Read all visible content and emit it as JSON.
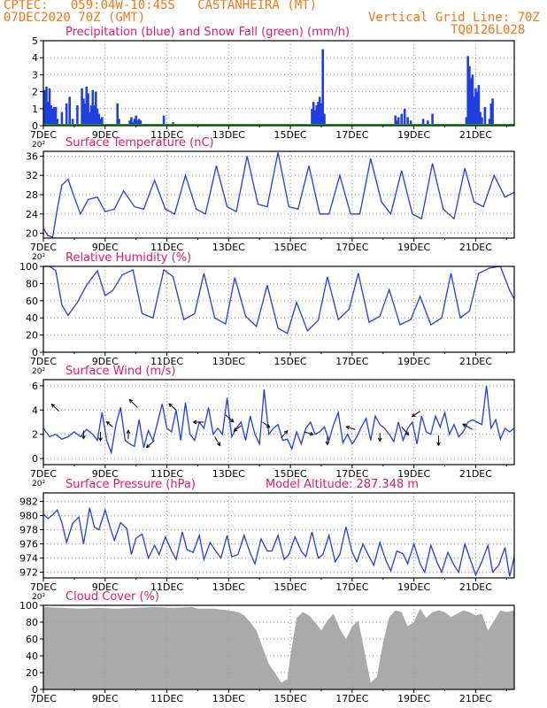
{
  "header": {
    "line1_left": "CPTEC:   059:04W-10:45S   CASTANHEIRA (MT)",
    "line2_left": "07DEC2020 70Z (GMT)",
    "line1_right": "Vertical Grid Line: 70Z",
    "line2_right": "TQ0126L028"
  },
  "colors": {
    "header": "#f07818",
    "title": "#e0186c",
    "series": "#1f3fe0",
    "snow": "#20a020",
    "cloud": "#aaaaaa",
    "grid": "#999999"
  },
  "x_axis": {
    "tick_labels": [
      "7DEC",
      "9DEC",
      "11DEC",
      "13DEC",
      "15DEC",
      "17DEC",
      "19DEC",
      "21DEC"
    ],
    "stub_label": "20²"
  },
  "chart_data": [
    {
      "id": "precip",
      "type": "bar",
      "title": "Precipitation (blue) and Snow Fall (green) (mm/h)",
      "yticks": [
        "0",
        "1",
        "2",
        "3",
        "4",
        "5"
      ],
      "ylim": [
        0,
        5
      ],
      "x": [
        0.05,
        0.1,
        0.15,
        0.2,
        0.25,
        0.3,
        0.35,
        0.4,
        0.45,
        0.6,
        0.75,
        0.85,
        0.95,
        1.1,
        1.25,
        1.3,
        1.35,
        1.4,
        1.45,
        1.5,
        1.55,
        1.6,
        1.65,
        1.7,
        1.75,
        1.8,
        1.85,
        1.9,
        2.4,
        2.45,
        2.8,
        2.85,
        2.9,
        2.95,
        3.0,
        3.05,
        3.1,
        3.15,
        3.9,
        4.2,
        8.7,
        8.75,
        8.8,
        8.85,
        8.9,
        8.95,
        9.0,
        9.05,
        9.1,
        11.4,
        11.45,
        11.5,
        11.6,
        11.7,
        11.8,
        11.9,
        12.3,
        12.45,
        12.6,
        13.7,
        13.75,
        13.8,
        13.85,
        13.9,
        13.95,
        14.0,
        14.05,
        14.1,
        14.15,
        14.2,
        14.3,
        14.45,
        14.5,
        14.55
      ],
      "values": [
        2.1,
        2.3,
        1.4,
        2.2,
        1.2,
        1.0,
        1.1,
        1.1,
        0.4,
        0.8,
        1.3,
        1.7,
        0.4,
        1.2,
        2.2,
        1.6,
        1.3,
        2.3,
        1.9,
        0.8,
        1.2,
        2.1,
        1.2,
        2.0,
        1.0,
        0.7,
        0.4,
        0.5,
        1.3,
        0.4,
        0.3,
        0.5,
        0.2,
        0.4,
        0.6,
        0.3,
        0.4,
        0.3,
        0.6,
        0.2,
        1.0,
        1.4,
        0.9,
        1.2,
        1.4,
        1.7,
        1.3,
        4.5,
        0.7,
        0.6,
        0.3,
        0.5,
        0.7,
        1.0,
        0.5,
        0.3,
        0.4,
        0.3,
        0.7,
        0.5,
        4.1,
        3.5,
        2.8,
        3.0,
        1.7,
        2.2,
        2.0,
        2.4,
        0.8,
        0.5,
        1.1,
        0.4,
        1.3,
        1.6
      ],
      "snow": 0
    },
    {
      "id": "temp",
      "type": "line",
      "title": "Surface Temperature (nC)",
      "yticks": [
        "20",
        "24",
        "28",
        "32",
        "36"
      ],
      "ylim": [
        19,
        37
      ],
      "x": [
        0,
        0.15,
        0.3,
        0.45,
        0.6,
        0.8,
        1.0,
        1.2,
        1.45,
        1.75,
        2.0,
        2.3,
        2.6,
        2.95,
        3.25,
        3.6,
        3.95,
        4.25,
        4.6,
        4.95,
        5.25,
        5.6,
        5.95,
        6.25,
        6.6,
        6.95,
        7.25,
        7.6,
        7.95,
        8.25,
        8.6,
        8.95,
        9.25,
        9.6,
        9.95,
        10.25,
        10.6,
        10.95,
        11.25,
        11.6,
        11.95,
        12.25,
        12.6,
        12.95,
        13.3,
        13.65,
        13.95,
        14.25,
        14.6,
        14.95,
        15.25
      ],
      "values": [
        21,
        19.5,
        19.2,
        25,
        30,
        31.2,
        27.5,
        24,
        27,
        27.5,
        24.5,
        25,
        28.8,
        25.5,
        25,
        31,
        25,
        24,
        32,
        25,
        24,
        34,
        25.5,
        24.5,
        36,
        26,
        25.5,
        36.8,
        25.5,
        25,
        34,
        24,
        24,
        32,
        24,
        24,
        35.5,
        26.5,
        24,
        33,
        24,
        23,
        34.5,
        25,
        23,
        33.5,
        26.5,
        25.5,
        32,
        27.5,
        28.5
      ]
    },
    {
      "id": "rh",
      "type": "line",
      "title": "Relative Humidity (%)",
      "yticks": [
        "0",
        "20",
        "40",
        "60",
        "80",
        "100"
      ],
      "ylim": [
        0,
        100
      ],
      "x": [
        0,
        0.2,
        0.4,
        0.6,
        0.8,
        1.1,
        1.4,
        1.75,
        2.0,
        2.25,
        2.55,
        2.9,
        3.2,
        3.55,
        3.9,
        4.2,
        4.55,
        4.9,
        5.2,
        5.55,
        5.9,
        6.2,
        6.55,
        6.9,
        7.25,
        7.6,
        7.9,
        8.2,
        8.55,
        8.9,
        9.2,
        9.55,
        9.9,
        10.2,
        10.55,
        10.9,
        11.2,
        11.55,
        11.9,
        12.2,
        12.55,
        12.9,
        13.2,
        13.5,
        13.8,
        14.1,
        14.45,
        14.8,
        15.1,
        15.25
      ],
      "values": [
        100,
        100,
        95,
        55,
        43,
        58,
        78,
        95,
        66,
        72,
        90,
        96,
        45,
        40,
        96,
        88,
        38,
        45,
        92,
        40,
        33,
        87,
        42,
        30,
        78,
        28,
        22,
        58,
        25,
        37,
        88,
        38,
        50,
        92,
        35,
        42,
        73,
        32,
        38,
        65,
        32,
        40,
        92,
        40,
        48,
        92,
        98,
        100,
        72,
        62
      ]
    },
    {
      "id": "wind",
      "type": "line",
      "title": "Surface Wind (m/s)",
      "yticks": [
        "0",
        "2",
        "4",
        "6"
      ],
      "ylim": [
        -0.5,
        6.5
      ],
      "x": [
        0,
        0.2,
        0.4,
        0.6,
        0.8,
        1.0,
        1.2,
        1.4,
        1.6,
        1.75,
        1.9,
        2.05,
        2.2,
        2.35,
        2.5,
        2.65,
        2.8,
        2.95,
        3.1,
        3.25,
        3.4,
        3.55,
        3.7,
        3.85,
        4.0,
        4.15,
        4.3,
        4.45,
        4.6,
        4.75,
        4.9,
        5.05,
        5.2,
        5.35,
        5.5,
        5.65,
        5.8,
        5.95,
        6.1,
        6.25,
        6.4,
        6.55,
        6.7,
        6.85,
        7.0,
        7.15,
        7.3,
        7.45,
        7.6,
        7.75,
        7.9,
        8.05,
        8.2,
        8.35,
        8.5,
        8.65,
        8.8,
        8.95,
        9.1,
        9.25,
        9.4,
        9.55,
        9.7,
        9.85,
        10.0,
        10.15,
        10.3,
        10.45,
        10.6,
        10.75,
        10.9,
        11.05,
        11.2,
        11.35,
        11.5,
        11.65,
        11.8,
        11.95,
        12.1,
        12.25,
        12.4,
        12.55,
        12.7,
        12.85,
        13.0,
        13.15,
        13.3,
        13.45,
        13.6,
        13.75,
        13.9,
        14.05,
        14.2,
        14.35,
        14.5,
        14.65,
        14.8,
        14.95,
        15.1,
        15.25
      ],
      "values": [
        2.5,
        1.8,
        2.0,
        1.6,
        1.8,
        2.2,
        1.8,
        2.4,
        2.0,
        1.5,
        3.8,
        1.5,
        0.5,
        2.8,
        4.2,
        1.5,
        1.2,
        1.0,
        3.2,
        0.9,
        2.3,
        1.5,
        3.0,
        4.5,
        2.5,
        2.2,
        4.0,
        1.5,
        4.6,
        2.0,
        1.5,
        3.0,
        2.5,
        4.2,
        2.0,
        2.5,
        2.0,
        5.0,
        1.8,
        2.5,
        3.0,
        1.5,
        3.5,
        2.0,
        1.2,
        5.7,
        2.0,
        2.5,
        2.8,
        1.5,
        1.6,
        0.8,
        2.2,
        1.2,
        2.5,
        3.0,
        2.0,
        2.2,
        2.6,
        1.5,
        2.8,
        3.8,
        1.3,
        2.0,
        1.2,
        1.8,
        2.6,
        3.3,
        1.5,
        3.5,
        2.8,
        2.5,
        2.0,
        1.4,
        3.0,
        1.5,
        2.5,
        3.0,
        1.2,
        3.5,
        2.2,
        2.0,
        3.5,
        2.6,
        3.8,
        2.0,
        2.8,
        1.8,
        2.2,
        3.0,
        3.2,
        3.0,
        2.8,
        6.0,
        2.5,
        3.2,
        1.6,
        2.5,
        2.2,
        2.5
      ]
    },
    {
      "id": "pres",
      "type": "line",
      "title": "Surface Pressure (hPa)",
      "note": "Model Altitude: 287.348 m",
      "yticks": [
        "972",
        "974",
        "976",
        "978",
        "980",
        "982"
      ],
      "ylim": [
        971.2,
        983.2
      ],
      "x": [
        0,
        0.15,
        0.3,
        0.45,
        0.6,
        0.75,
        0.95,
        1.15,
        1.3,
        1.5,
        1.65,
        1.8,
        2.0,
        2.15,
        2.3,
        2.5,
        2.7,
        2.85,
        3.0,
        3.2,
        3.4,
        3.6,
        3.75,
        3.95,
        4.15,
        4.3,
        4.5,
        4.65,
        4.85,
        5.05,
        5.2,
        5.4,
        5.55,
        5.75,
        5.95,
        6.1,
        6.3,
        6.5,
        6.7,
        6.85,
        7.05,
        7.25,
        7.4,
        7.6,
        7.8,
        7.95,
        8.15,
        8.35,
        8.5,
        8.7,
        8.9,
        9.05,
        9.25,
        9.45,
        9.6,
        9.8,
        10.0,
        10.15,
        10.35,
        10.55,
        10.7,
        10.9,
        11.1,
        11.25,
        11.45,
        11.65,
        11.8,
        12.0,
        12.2,
        12.35,
        12.55,
        12.75,
        12.9,
        13.1,
        13.3,
        13.45,
        13.65,
        13.85,
        14.0,
        14.2,
        14.4,
        14.55,
        14.75,
        14.95,
        15.1,
        15.25
      ],
      "values": [
        980.2,
        979.6,
        980.1,
        980.8,
        979.0,
        976.2,
        978.9,
        979.8,
        976.0,
        981.1,
        978.4,
        978.0,
        980.8,
        978.5,
        976.5,
        979.0,
        978.2,
        974.5,
        976.8,
        977.4,
        974.0,
        975.8,
        974.5,
        977.0,
        975.0,
        973.8,
        977.7,
        975.2,
        974.8,
        977.2,
        973.8,
        976.2,
        975.2,
        974.0,
        977.2,
        974.2,
        974.5,
        977.2,
        974.7,
        973.2,
        976.7,
        975.0,
        975.0,
        977.2,
        973.8,
        974.5,
        977.0,
        975.0,
        974.2,
        977.7,
        974.0,
        974.5,
        977.2,
        973.5,
        974.5,
        978.4,
        974.8,
        973.5,
        976.0,
        974.2,
        973.0,
        976.2,
        973.6,
        972.2,
        975.0,
        974.6,
        973.2,
        976.0,
        973.2,
        972.0,
        975.8,
        973.4,
        972.0,
        974.8,
        973.0,
        972.0,
        976.0,
        973.5,
        971.6,
        973.5,
        975.8,
        972.0,
        973.0,
        975.5,
        971.4,
        974.2
      ]
    },
    {
      "id": "cloud",
      "type": "area",
      "title": "Cloud Cover (%)",
      "yticks": [
        "0",
        "20",
        "40",
        "60",
        "80",
        "100"
      ],
      "ylim": [
        0,
        100
      ],
      "x": [
        0,
        0.6,
        1.2,
        1.8,
        2.4,
        3.0,
        3.6,
        4.2,
        4.8,
        5.0,
        5.5,
        6.0,
        6.3,
        6.5,
        6.7,
        6.9,
        7.1,
        7.3,
        7.5,
        7.7,
        7.9,
        8.0,
        8.2,
        8.4,
        8.6,
        8.8,
        9.0,
        9.2,
        9.4,
        9.6,
        9.8,
        10.0,
        10.2,
        10.4,
        10.6,
        10.8,
        11.0,
        11.2,
        11.4,
        11.6,
        11.8,
        12.0,
        12.2,
        12.4,
        12.6,
        12.8,
        13.0,
        13.2,
        13.4,
        13.6,
        13.8,
        14.0,
        14.2,
        14.4,
        14.6,
        14.8,
        15.0,
        15.25
      ],
      "values": [
        98,
        97,
        96,
        97,
        96,
        97,
        98,
        97,
        98,
        96,
        96,
        94,
        92,
        88,
        80,
        70,
        50,
        30,
        20,
        8,
        12,
        40,
        85,
        92,
        88,
        80,
        70,
        82,
        90,
        72,
        60,
        75,
        82,
        45,
        8,
        15,
        55,
        86,
        94,
        92,
        75,
        80,
        96,
        85,
        92,
        94,
        92,
        86,
        90,
        94,
        92,
        88,
        90,
        70,
        82,
        94,
        92,
        94
      ]
    }
  ]
}
